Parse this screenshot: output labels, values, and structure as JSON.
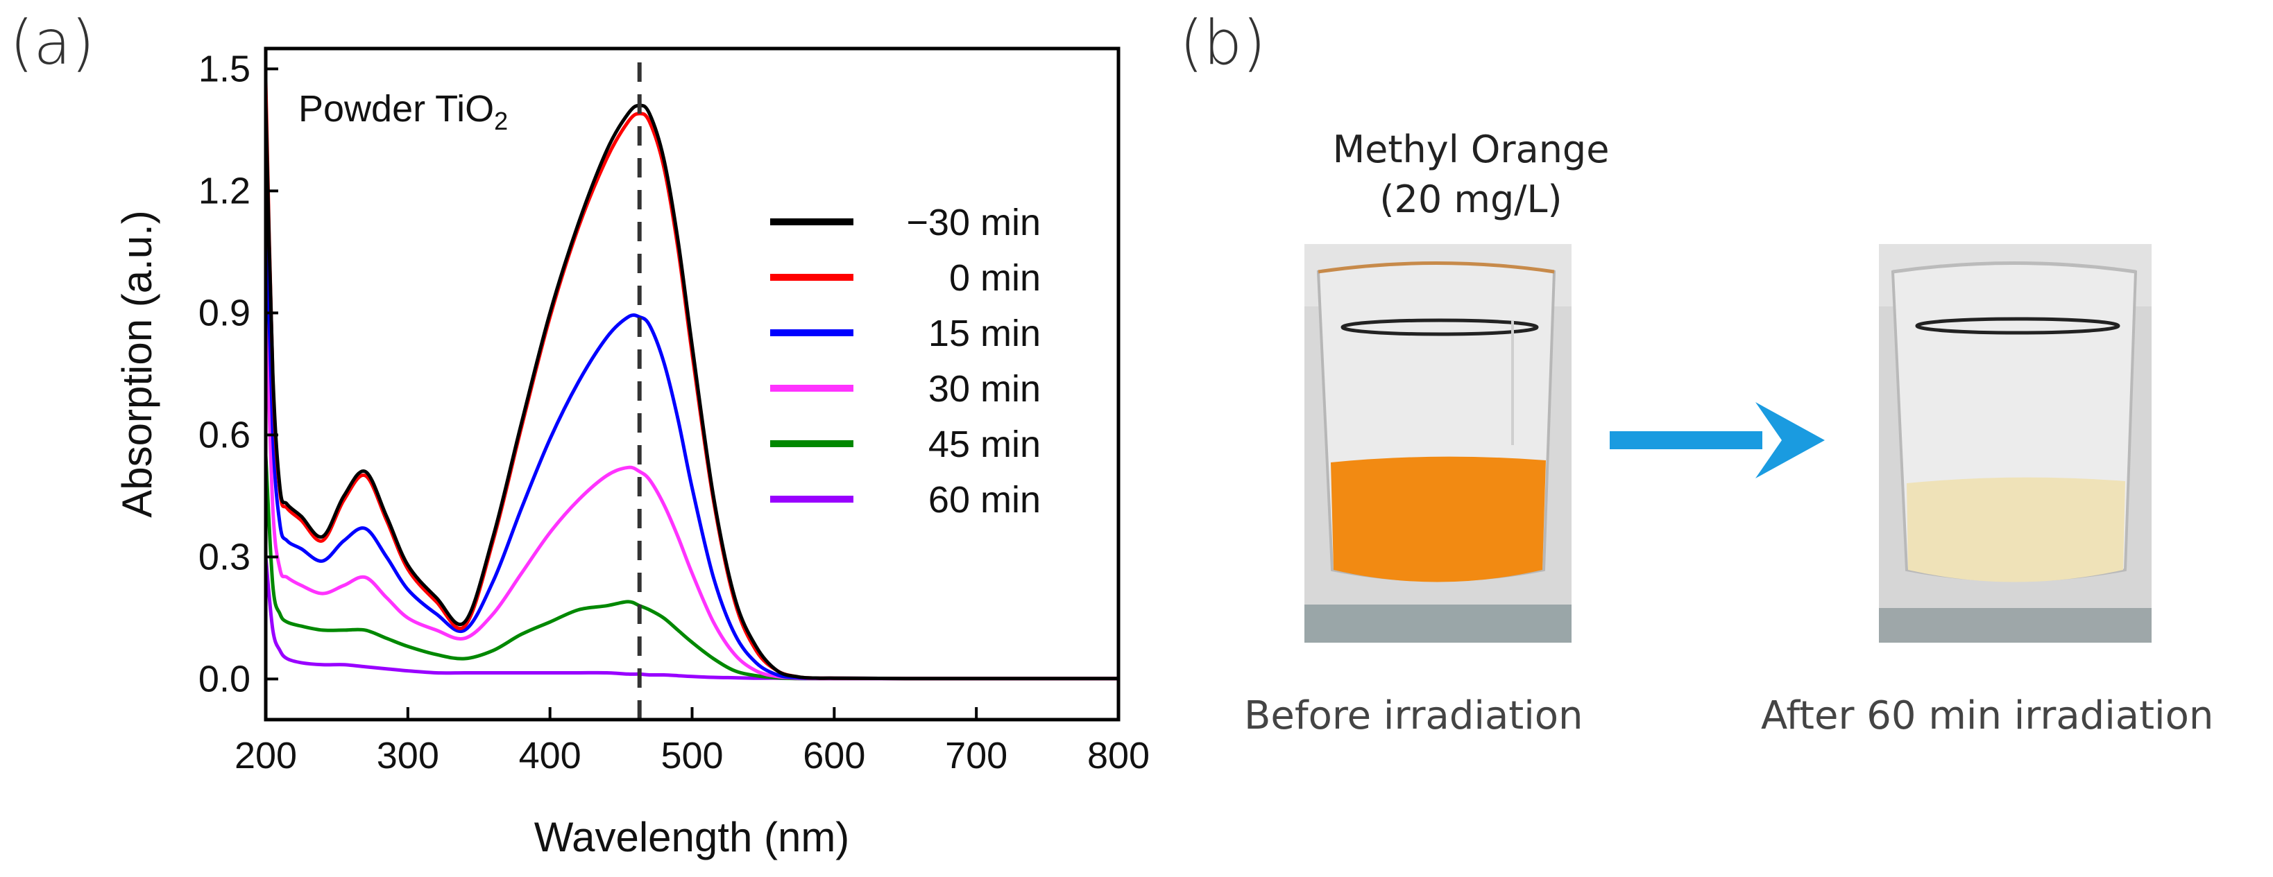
{
  "panel_a_label": "(a)",
  "panel_b_label": "(b)",
  "chart_data": {
    "type": "line",
    "title": "",
    "annotation": {
      "text": "Powder TiO",
      "subscript": "2"
    },
    "xlabel": "Wavelength (nm)",
    "ylabel": "Absorption (a.u.)",
    "xlim": [
      200,
      800
    ],
    "ylim": [
      -0.1,
      1.55
    ],
    "xticks": [
      200,
      300,
      400,
      500,
      600,
      700,
      800
    ],
    "yticks": [
      0.0,
      0.3,
      0.6,
      0.9,
      1.2,
      1.5
    ],
    "ytick_labels": [
      "0.0",
      "0.3",
      "0.6",
      "0.9",
      "1.2",
      "1.5"
    ],
    "reference_line_x": 463,
    "legend_position": "right",
    "series": [
      {
        "name": "−30 min",
        "color": "#000000",
        "x": [
          200,
          205,
          210,
          215,
          225,
          240,
          255,
          270,
          285,
          300,
          320,
          340,
          360,
          380,
          400,
          420,
          440,
          455,
          463,
          470,
          480,
          490,
          500,
          515,
          530,
          545,
          560,
          575,
          590,
          600,
          650,
          700,
          800
        ],
        "y": [
          1.42,
          0.75,
          0.47,
          0.43,
          0.4,
          0.35,
          0.45,
          0.51,
          0.4,
          0.28,
          0.2,
          0.14,
          0.35,
          0.63,
          0.9,
          1.12,
          1.3,
          1.39,
          1.41,
          1.39,
          1.28,
          1.08,
          0.82,
          0.45,
          0.2,
          0.08,
          0.02,
          0.005,
          0.002,
          0.002,
          0.001,
          0.001,
          0.001
        ]
      },
      {
        "name": "0 min",
        "color": "#ff0000",
        "x": [
          200,
          205,
          210,
          215,
          225,
          240,
          255,
          270,
          285,
          300,
          320,
          340,
          360,
          380,
          400,
          420,
          440,
          455,
          463,
          470,
          480,
          490,
          500,
          515,
          530,
          545,
          560,
          575,
          590,
          600,
          650,
          700,
          800
        ],
        "y": [
          1.47,
          0.74,
          0.46,
          0.42,
          0.39,
          0.34,
          0.44,
          0.5,
          0.39,
          0.27,
          0.19,
          0.13,
          0.34,
          0.62,
          0.89,
          1.11,
          1.28,
          1.37,
          1.39,
          1.37,
          1.26,
          1.06,
          0.8,
          0.44,
          0.19,
          0.07,
          0.02,
          0.005,
          0.002,
          0.002,
          0.001,
          0.001,
          0.001
        ]
      },
      {
        "name": "15 min",
        "color": "#0000ff",
        "x": [
          200,
          205,
          210,
          215,
          225,
          240,
          255,
          270,
          285,
          300,
          320,
          340,
          360,
          380,
          400,
          420,
          440,
          455,
          463,
          470,
          480,
          490,
          500,
          515,
          530,
          545,
          560,
          575,
          590,
          600,
          650,
          700,
          800
        ],
        "y": [
          1.2,
          0.6,
          0.38,
          0.34,
          0.32,
          0.29,
          0.34,
          0.37,
          0.3,
          0.22,
          0.16,
          0.12,
          0.24,
          0.42,
          0.59,
          0.73,
          0.84,
          0.89,
          0.89,
          0.87,
          0.78,
          0.64,
          0.47,
          0.25,
          0.11,
          0.04,
          0.01,
          0.003,
          0.002,
          0.002,
          0.001,
          0.001,
          0.001
        ]
      },
      {
        "name": "30 min",
        "color": "#ff33ff",
        "x": [
          200,
          205,
          210,
          215,
          225,
          240,
          255,
          270,
          285,
          300,
          320,
          340,
          360,
          380,
          400,
          420,
          440,
          455,
          463,
          470,
          480,
          490,
          500,
          515,
          530,
          545,
          560,
          575,
          590,
          600,
          650,
          700,
          800
        ],
        "y": [
          0.95,
          0.42,
          0.27,
          0.25,
          0.23,
          0.21,
          0.23,
          0.25,
          0.2,
          0.15,
          0.12,
          0.1,
          0.16,
          0.26,
          0.36,
          0.44,
          0.5,
          0.52,
          0.51,
          0.49,
          0.43,
          0.35,
          0.26,
          0.14,
          0.06,
          0.02,
          0.006,
          0.002,
          0.001,
          0.001,
          0.001,
          0.001,
          0.001
        ]
      },
      {
        "name": "45 min",
        "color": "#008800",
        "x": [
          200,
          205,
          210,
          215,
          225,
          240,
          255,
          270,
          285,
          300,
          320,
          340,
          360,
          380,
          400,
          420,
          440,
          455,
          463,
          470,
          480,
          490,
          500,
          515,
          530,
          545,
          560,
          575,
          590,
          600,
          650,
          700,
          800
        ],
        "y": [
          0.55,
          0.23,
          0.16,
          0.14,
          0.13,
          0.12,
          0.12,
          0.12,
          0.1,
          0.08,
          0.06,
          0.05,
          0.07,
          0.11,
          0.14,
          0.17,
          0.18,
          0.19,
          0.18,
          0.17,
          0.15,
          0.12,
          0.09,
          0.05,
          0.02,
          0.008,
          0.003,
          0.001,
          0.001,
          0.001,
          0.001,
          0.001,
          0.001
        ]
      },
      {
        "name": "60 min",
        "color": "#9900ff",
        "x": [
          200,
          205,
          210,
          215,
          225,
          240,
          255,
          270,
          285,
          300,
          320,
          340,
          360,
          380,
          400,
          420,
          440,
          455,
          463,
          470,
          480,
          490,
          500,
          515,
          530,
          545,
          560,
          575,
          590,
          600,
          650,
          700,
          800
        ],
        "y": [
          0.3,
          0.12,
          0.07,
          0.05,
          0.04,
          0.035,
          0.035,
          0.03,
          0.025,
          0.02,
          0.015,
          0.015,
          0.015,
          0.015,
          0.015,
          0.015,
          0.015,
          0.012,
          0.012,
          0.01,
          0.01,
          0.008,
          0.006,
          0.004,
          0.003,
          0.002,
          0.002,
          0.001,
          0.001,
          0.001,
          0.001,
          0.001,
          0.001
        ]
      }
    ]
  },
  "panel_b": {
    "title_line1": "Methyl Orange",
    "title_line2": "(20 mg/L)",
    "before_caption": "Before irradiation",
    "after_caption": "After 60 min irradiation",
    "before_liquid_color": "#f28a12",
    "after_liquid_color": "#efe2b8",
    "arrow_color": "#1a9be0"
  }
}
